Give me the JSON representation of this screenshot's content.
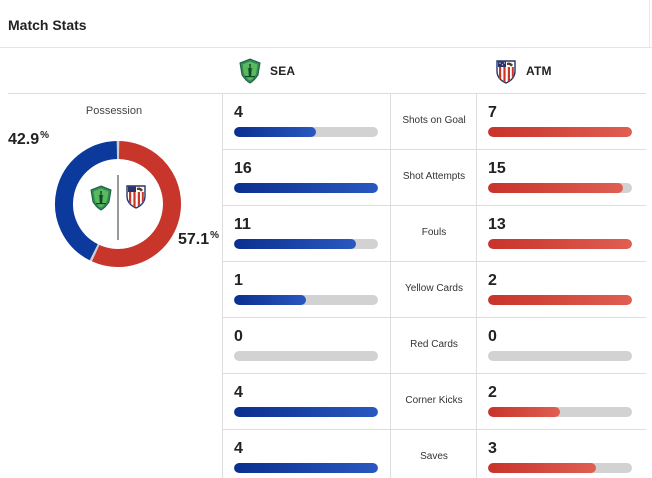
{
  "header": {
    "title": "Match Stats"
  },
  "teams": {
    "home": {
      "abbr": "SEA",
      "color": "#0b3a9c",
      "crest_icon": "seattle-sounders-crest-icon"
    },
    "away": {
      "abbr": "ATM",
      "color": "#c7352b",
      "crest_icon": "atletico-madrid-crest-icon"
    }
  },
  "possession": {
    "label": "Possession",
    "home_value": "42.9",
    "away_value": "57.1",
    "unit": "%",
    "home_fraction": 0.429,
    "away_fraction": 0.571,
    "track_color": "#cfcfcf"
  },
  "stats": [
    {
      "label": "Shots on Goal",
      "home": "4",
      "away": "7",
      "home_fill": 0.57,
      "away_fill": 1.0
    },
    {
      "label": "Shot Attempts",
      "home": "16",
      "away": "15",
      "home_fill": 1.0,
      "away_fill": 0.94
    },
    {
      "label": "Fouls",
      "home": "11",
      "away": "13",
      "home_fill": 0.85,
      "away_fill": 1.0
    },
    {
      "label": "Yellow Cards",
      "home": "1",
      "away": "2",
      "home_fill": 0.5,
      "away_fill": 1.0
    },
    {
      "label": "Red Cards",
      "home": "0",
      "away": "0",
      "home_fill": 0.0,
      "away_fill": 0.0
    },
    {
      "label": "Corner Kicks",
      "home": "4",
      "away": "2",
      "home_fill": 1.0,
      "away_fill": 0.5
    },
    {
      "label": "Saves",
      "home": "4",
      "away": "3",
      "home_fill": 1.0,
      "away_fill": 0.75
    }
  ]
}
